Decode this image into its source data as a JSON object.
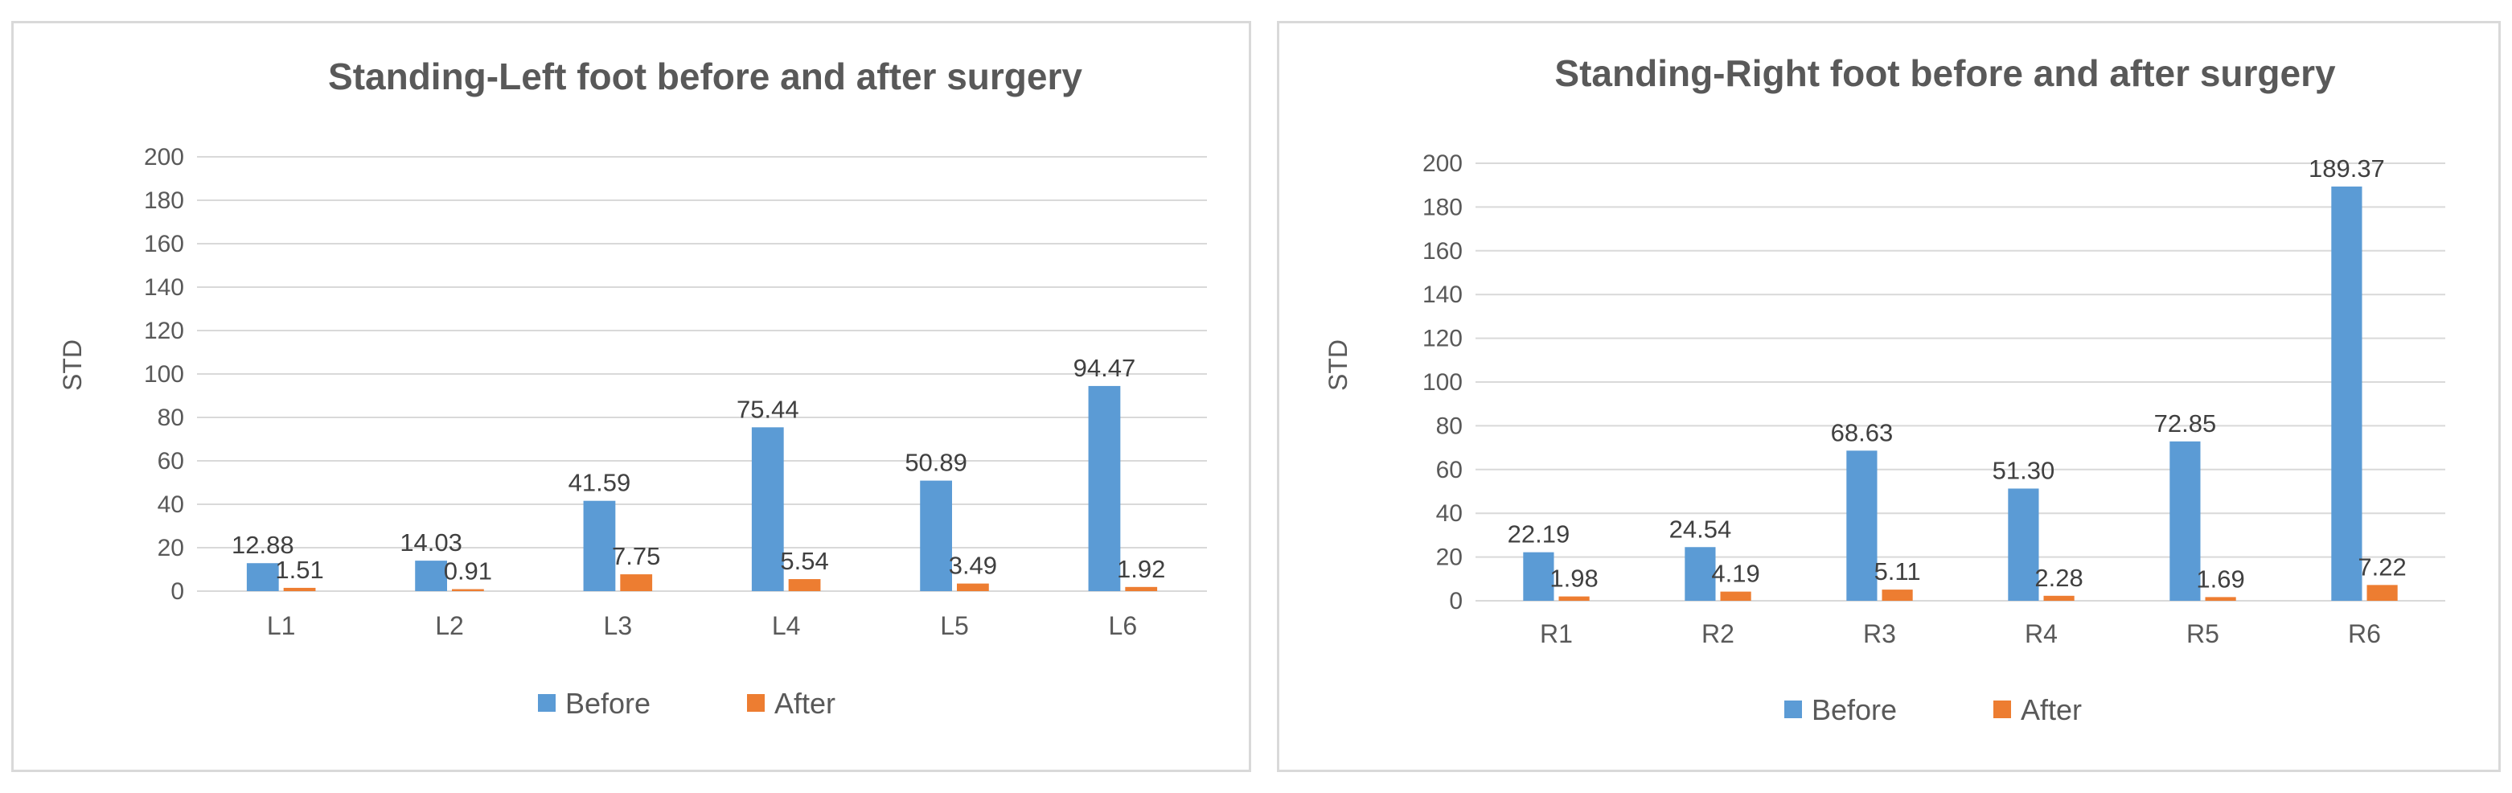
{
  "chart_data": [
    {
      "type": "bar",
      "title": "Standing-Left foot before and after surgery",
      "xlabel": "",
      "ylabel": "STD",
      "ylim": [
        0,
        200
      ],
      "ytick_step": 20,
      "ytick_labels": [
        "0",
        "20",
        "40",
        "60",
        "80",
        "100",
        "120",
        "140",
        "160",
        "180",
        "200"
      ],
      "categories": [
        "L1",
        "L2",
        "L3",
        "L4",
        "L5",
        "L6"
      ],
      "series": [
        {
          "name": "Before",
          "color": "#5b9bd5",
          "values": [
            12.88,
            14.03,
            41.59,
            75.44,
            50.89,
            94.47
          ],
          "labels": [
            "12.88",
            "14.03",
            "41.59",
            "75.44",
            "50.89",
            "94.47"
          ]
        },
        {
          "name": "After",
          "color": "#ed7d31",
          "values": [
            1.51,
            0.91,
            7.75,
            5.54,
            3.49,
            1.92
          ],
          "labels": [
            "1.51",
            "0.91",
            "7.75",
            "5.54",
            "3.49",
            "1.92"
          ]
        }
      ],
      "legend_position": "bottom"
    },
    {
      "type": "bar",
      "title": "Standing-Right foot before and after surgery",
      "xlabel": "",
      "ylabel": "STD",
      "ylim": [
        0,
        200
      ],
      "ytick_step": 20,
      "ytick_labels": [
        "0",
        "20",
        "40",
        "60",
        "80",
        "100",
        "120",
        "140",
        "160",
        "180",
        "200"
      ],
      "categories": [
        "R1",
        "R2",
        "R3",
        "R4",
        "R5",
        "R6"
      ],
      "series": [
        {
          "name": "Before",
          "color": "#5b9bd5",
          "values": [
            22.19,
            24.54,
            68.63,
            51.3,
            72.85,
            189.37
          ],
          "labels": [
            "22.19",
            "24.54",
            "68.63",
            "51.30",
            "72.85",
            "189.37"
          ]
        },
        {
          "name": "After",
          "color": "#ed7d31",
          "values": [
            1.98,
            4.19,
            5.11,
            2.28,
            1.69,
            7.22
          ],
          "labels": [
            "1.98",
            "4.19",
            "5.11",
            "2.28",
            "1.69",
            "7.22"
          ]
        }
      ],
      "legend_position": "bottom"
    }
  ]
}
